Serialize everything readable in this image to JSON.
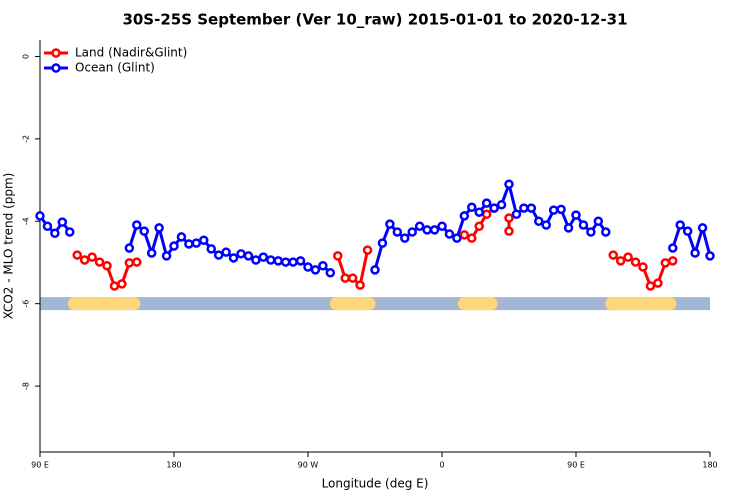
{
  "chart_data": {
    "type": "line",
    "title": "30S-25S September (Ver 10_raw)   2015-01-01 to 2020-12-31",
    "x_label": "Longitude (deg E)",
    "y_label": "XCO2 - MLO trend (ppm)",
    "xlim": [
      90,
      540
    ],
    "ylim": [
      -9.6,
      0.4
    ],
    "xticks": [
      {
        "value": 90,
        "label": "90 E"
      },
      {
        "value": 180,
        "label": "180"
      },
      {
        "value": 270,
        "label": "90 W"
      },
      {
        "value": 360,
        "label": "0"
      },
      {
        "value": 450,
        "label": "90 E"
      },
      {
        "value": 540,
        "label": "180"
      }
    ],
    "yticks": [
      0,
      -2,
      -4,
      -6,
      -8
    ],
    "legend": "top-left",
    "band": {
      "y": -6,
      "color": "#a3b6d3",
      "land_color": "#fdd77a",
      "land_ranges": [
        [
          113,
          153
        ],
        [
          289,
          311
        ],
        [
          375,
          393
        ],
        [
          474,
          513
        ]
      ]
    },
    "series": [
      {
        "name": "Land (Nadir&Glint)",
        "color": "#ff0000",
        "x": [
          115,
          120,
          125,
          130,
          135,
          140,
          145,
          150,
          155,
          null,
          290,
          295,
          300,
          305,
          310,
          null,
          375,
          380,
          385,
          390,
          395,
          null,
          405,
          405,
          null,
          475,
          480,
          485,
          490,
          495,
          500,
          505,
          510,
          515
        ],
        "values": [
          -4.82,
          -4.94,
          -4.87,
          -4.99,
          -5.08,
          -5.57,
          -5.52,
          -5.01,
          -4.99,
          null,
          -4.84,
          -5.38,
          -5.38,
          -5.55,
          -4.7,
          null,
          -4.33,
          -4.41,
          -4.12,
          -3.83,
          -3.68,
          null,
          -3.92,
          -4.24,
          null,
          -4.82,
          -4.96,
          -4.87,
          -4.99,
          -5.11,
          -5.57,
          -5.5,
          -5.01,
          -4.96
        ]
      },
      {
        "name": "Ocean (Glint)",
        "color": "#0000ff",
        "x": [
          90,
          95,
          100,
          105,
          110,
          null,
          150,
          155,
          160,
          165,
          170,
          175,
          180,
          185,
          190,
          195,
          200,
          205,
          210,
          215,
          220,
          225,
          230,
          235,
          240,
          245,
          250,
          255,
          260,
          265,
          270,
          275,
          280,
          285,
          null,
          315,
          320,
          325,
          330,
          335,
          340,
          345,
          350,
          355,
          360,
          365,
          370,
          375,
          380,
          385,
          390,
          395,
          400,
          405,
          410,
          415,
          420,
          425,
          430,
          435,
          440,
          445,
          450,
          455,
          460,
          465,
          470,
          null,
          515,
          520,
          525,
          530,
          535,
          540
        ],
        "values": [
          -3.87,
          -4.12,
          -4.29,
          -4.02,
          -4.26,
          null,
          -4.65,
          -4.09,
          -4.24,
          -4.77,
          -4.16,
          -4.84,
          -4.6,
          -4.38,
          -4.55,
          -4.53,
          -4.46,
          -4.67,
          -4.82,
          -4.75,
          -4.89,
          -4.79,
          -4.84,
          -4.94,
          -4.87,
          -4.94,
          -4.96,
          -4.99,
          -4.99,
          -4.96,
          -5.11,
          -5.18,
          -5.08,
          -5.25,
          null,
          -5.18,
          -4.53,
          -4.07,
          -4.26,
          -4.41,
          -4.26,
          -4.12,
          -4.21,
          -4.21,
          -4.12,
          -4.31,
          -4.41,
          -3.87,
          -3.66,
          -3.78,
          -3.56,
          -3.68,
          -3.6,
          -3.1,
          -3.83,
          -3.68,
          -3.68,
          -4.0,
          -4.09,
          -3.73,
          -3.71,
          -4.16,
          -3.85,
          -4.09,
          -4.26,
          -4.0,
          -4.26,
          null,
          -4.65,
          -4.09,
          -4.24,
          -4.77,
          -4.16,
          -4.84
        ]
      }
    ]
  }
}
